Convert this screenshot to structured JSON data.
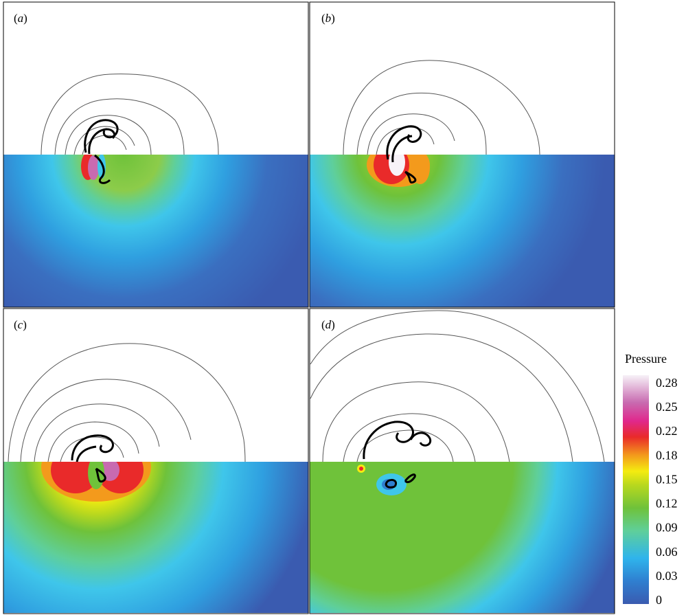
{
  "panels": [
    {
      "label_open": "(",
      "label_letter": "a",
      "label_close": ")"
    },
    {
      "label_open": "(",
      "label_letter": "b",
      "label_close": ")"
    },
    {
      "label_open": "(",
      "label_letter": "c",
      "label_close": ")"
    },
    {
      "label_open": "(",
      "label_letter": "d",
      "label_close": ")"
    }
  ],
  "colorbar": {
    "title": "Pressure",
    "ticks": [
      "0.28",
      "0.25",
      "0.22",
      "0.18",
      "0.15",
      "0.12",
      "0.09",
      "0.06",
      "0.03",
      "0"
    ],
    "colors": {
      "blue_dark": "#3a5bb0",
      "blue": "#2f9fe0",
      "cyan": "#3fc6ea",
      "teal": "#5fcf9a",
      "green": "#6fc23a",
      "lime": "#b8d81e",
      "yellow": "#f4ec10",
      "orange": "#f39a1c",
      "red": "#e92a2a",
      "magenta": "#e0288c",
      "pink": "#c86ab0",
      "white": "#f7f2f8"
    }
  }
}
